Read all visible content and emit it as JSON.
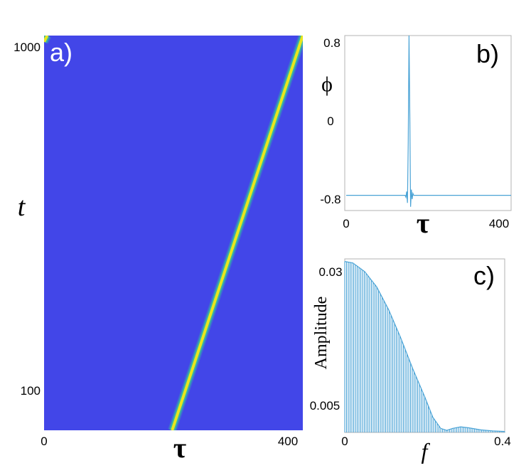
{
  "chart_data": [
    {
      "type": "heatmap",
      "panel_label": "a)",
      "xlabel": "τ",
      "ylabel": "t",
      "xlim": [
        0,
        400
      ],
      "ylim": [
        50,
        1000
      ],
      "x_ticks": [
        "0",
        "400"
      ],
      "y_ticks": [
        "100",
        "1000"
      ],
      "colors": {
        "background": "#4246e8",
        "ridge": "#e9e61d",
        "ridge_edge": "#34c49b"
      },
      "ridge": [
        {
          "tau": 198,
          "t": 50
        },
        {
          "tau": 400,
          "t": 1000
        }
      ],
      "ridge_wrap": [
        {
          "tau": 0,
          "t": 985
        },
        {
          "tau": 5,
          "t": 1000
        }
      ]
    },
    {
      "type": "line",
      "panel_label": "b)",
      "xlabel": "τ",
      "ylabel": "ϕ",
      "xlim": [
        0,
        420
      ],
      "ylim": [
        -0.92,
        0.92
      ],
      "x_ticks": [
        "0",
        "400"
      ],
      "y_ticks": [
        "0.8",
        "0",
        "-0.8"
      ],
      "color": "#4aa3d6",
      "series": [
        {
          "x": [
            0,
            150,
            152,
            154,
            156,
            158,
            160,
            162,
            164,
            166,
            168,
            170,
            172,
            420
          ],
          "y": [
            -0.76,
            -0.76,
            -0.78,
            -0.72,
            -0.84,
            -0.2,
            0.92,
            0.1,
            -0.88,
            -0.7,
            -0.8,
            -0.74,
            -0.76,
            -0.76
          ]
        }
      ]
    },
    {
      "type": "bar",
      "panel_label": "c)",
      "xlabel": "f",
      "ylabel": "Amplitude",
      "xlim": [
        0,
        0.4
      ],
      "ylim": [
        0,
        0.034
      ],
      "x_ticks": [
        "0",
        "0.4"
      ],
      "y_ticks": [
        "0.03",
        "0.005"
      ],
      "color": "#4aa3d6",
      "envelope": [
        {
          "f": 0.0,
          "a": 0.0335
        },
        {
          "f": 0.02,
          "a": 0.0332
        },
        {
          "f": 0.05,
          "a": 0.0315
        },
        {
          "f": 0.08,
          "a": 0.0285
        },
        {
          "f": 0.11,
          "a": 0.024
        },
        {
          "f": 0.14,
          "a": 0.0185
        },
        {
          "f": 0.17,
          "a": 0.0125
        },
        {
          "f": 0.2,
          "a": 0.007
        },
        {
          "f": 0.22,
          "a": 0.003
        },
        {
          "f": 0.24,
          "a": 0.0008
        },
        {
          "f": 0.255,
          "a": 0.0004
        },
        {
          "f": 0.27,
          "a": 0.0008
        },
        {
          "f": 0.29,
          "a": 0.0011
        },
        {
          "f": 0.31,
          "a": 0.0009
        },
        {
          "f": 0.34,
          "a": 0.0005
        },
        {
          "f": 0.37,
          "a": 0.0003
        },
        {
          "f": 0.4,
          "a": 0.0002
        }
      ]
    }
  ]
}
